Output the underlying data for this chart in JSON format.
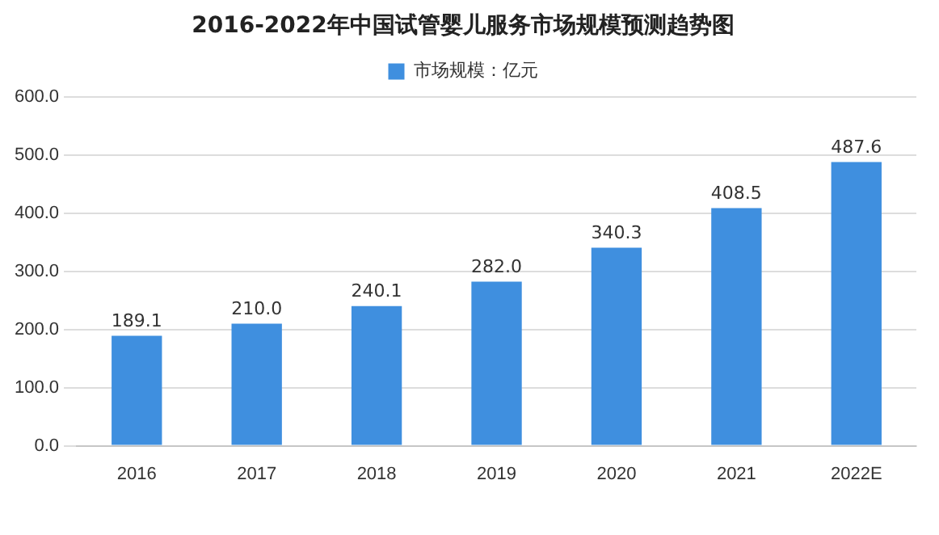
{
  "chart_data": {
    "type": "bar",
    "title": "2016-2022年中国试管婴儿服务市场规模预测趋势图",
    "categories": [
      "2016",
      "2017",
      "2018",
      "2019",
      "2020",
      "2021",
      "2022E"
    ],
    "series": [
      {
        "name": "市场规模：亿元",
        "color": "#3f8fdf",
        "values": [
          189.1,
          210.0,
          240.1,
          282.0,
          340.3,
          408.5,
          487.6
        ]
      }
    ],
    "value_labels": [
      "189.1",
      "210.0",
      "240.1",
      "282.0",
      "340.3",
      "408.5",
      "487.6"
    ],
    "ylim": [
      0,
      600
    ],
    "yticks": [
      {
        "value": 0,
        "label": "0.0"
      },
      {
        "value": 100,
        "label": "100.0"
      },
      {
        "value": 200,
        "label": "200.0"
      },
      {
        "value": 300,
        "label": "300.0"
      },
      {
        "value": 400,
        "label": "400.0"
      },
      {
        "value": 500,
        "label": "500.0"
      },
      {
        "value": 600,
        "label": "600.0"
      }
    ],
    "grid": "y",
    "legend": "top"
  }
}
